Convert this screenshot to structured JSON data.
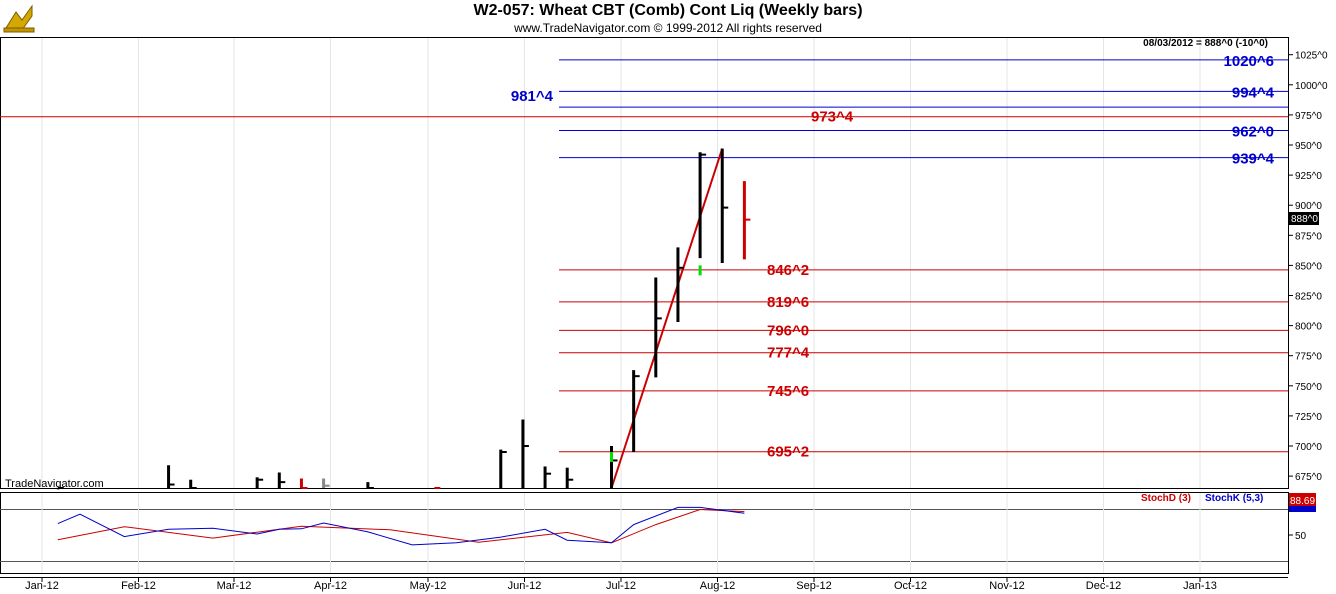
{
  "header": {
    "title": "W2-057:  Wheat CBT (Comb) Cont Liq  (Weekly bars)",
    "subtitle": "www.TradeNavigator.com © 1999-2012 All rights reserved",
    "quote": "08/03/2012 = 888^0 (-10^0)",
    "watermark": "TradeNavigator.com",
    "last_price_tag": "888^0"
  },
  "logo": {
    "icon": "tradenavigator-logo-icon"
  },
  "chart_data": [
    {
      "type": "ohlc",
      "x": [
        "Jan-12",
        "Feb-12",
        "Mar-12",
        "Apr-12",
        "May-12",
        "Jun-12",
        "Jul-12",
        "Aug-12",
        "Sep-12",
        "Oct-12",
        "Nov-12",
        "Dec-12",
        "Jan-13"
      ],
      "yticks": [
        "675^0",
        "700^0",
        "725^0",
        "750^0",
        "775^0",
        "800^0",
        "825^0",
        "850^0",
        "875^0",
        "900^0",
        "925^0",
        "950^0",
        "975^0",
        "1000^0",
        "1025^0"
      ],
      "ylim": [
        655,
        1032
      ],
      "bars": [
        {
          "date": "2012-01-06",
          "high": 665,
          "low": 655,
          "close": 660,
          "color": "#000000"
        },
        {
          "date": "2012-02-10",
          "high": 684,
          "low": 655,
          "close": 668,
          "color": "#000000"
        },
        {
          "date": "2012-02-17",
          "high": 672,
          "low": 655,
          "close": 664,
          "color": "#000000"
        },
        {
          "date": "2012-03-09",
          "high": 674,
          "low": 655,
          "close": 672,
          "color": "#000000"
        },
        {
          "date": "2012-03-16",
          "high": 678,
          "low": 655,
          "close": 670,
          "color": "#000000"
        },
        {
          "date": "2012-03-23",
          "high": 673,
          "low": 655,
          "close": 665,
          "color": "#cc0000"
        },
        {
          "date": "2012-03-30",
          "high": 673,
          "low": 655,
          "close": 667,
          "color": "#888888"
        },
        {
          "date": "2012-04-13",
          "high": 670,
          "low": 655,
          "close": 662,
          "color": "#000000"
        },
        {
          "date": "2012-05-04",
          "high": 665,
          "low": 655,
          "close": 660,
          "color": "#cc0000"
        },
        {
          "date": "2012-05-25",
          "high": 697,
          "low": 655,
          "close": 695,
          "color": "#000000"
        },
        {
          "date": "2012-06-01",
          "high": 722,
          "low": 655,
          "close": 700,
          "color": "#000000"
        },
        {
          "date": "2012-06-08",
          "high": 683,
          "low": 655,
          "close": 677,
          "color": "#000000"
        },
        {
          "date": "2012-06-15",
          "high": 682,
          "low": 655,
          "close": 672,
          "color": "#000000"
        },
        {
          "date": "2012-06-29",
          "high": 700,
          "low": 655,
          "close": 688,
          "color": "#000000"
        },
        {
          "date": "2012-07-06",
          "high": 763,
          "low": 695,
          "close": 758,
          "color": "#000000"
        },
        {
          "date": "2012-07-13",
          "high": 840,
          "low": 757,
          "close": 806,
          "color": "#000000"
        },
        {
          "date": "2012-07-20",
          "high": 865,
          "low": 803,
          "close": 848,
          "color": "#000000"
        },
        {
          "date": "2012-07-27",
          "high": 944,
          "low": 856,
          "close": 942,
          "color": "#000000"
        },
        {
          "date": "2012-08-03",
          "high": 947,
          "low": 852,
          "close": 898,
          "color": "#000000"
        },
        {
          "date": "2012-08-10",
          "high": 920,
          "low": 855,
          "close": 888,
          "color": "#cc0000"
        }
      ],
      "trendline": {
        "from": {
          "date": "2012-06-29",
          "price": 655
        },
        "to": {
          "date": "2012-08-03",
          "price": 947
        },
        "color": "#cc0000"
      },
      "levels": [
        {
          "label": "1020^6",
          "value": 1020.75,
          "color": "#0000cc",
          "side": "right"
        },
        {
          "label": "994^4",
          "value": 994.5,
          "color": "#0000cc",
          "side": "right"
        },
        {
          "label": "981^4",
          "value": 981.5,
          "color": "#0000cc",
          "side": "left"
        },
        {
          "label": "973^4",
          "value": 973.5,
          "color": "#cc0000",
          "side": "mid",
          "full": true
        },
        {
          "label": "962^0",
          "value": 962.0,
          "color": "#0000cc",
          "side": "right"
        },
        {
          "label": "939^4",
          "value": 939.5,
          "color": "#0000cc",
          "side": "right"
        },
        {
          "label": "846^2",
          "value": 846.25,
          "color": "#cc0000",
          "side": "mid"
        },
        {
          "label": "819^6",
          "value": 819.75,
          "color": "#cc0000",
          "side": "mid"
        },
        {
          "label": "796^0",
          "value": 796.0,
          "color": "#cc0000",
          "side": "mid"
        },
        {
          "label": "777^4",
          "value": 777.5,
          "color": "#cc0000",
          "side": "mid"
        },
        {
          "label": "745^6",
          "value": 745.75,
          "color": "#cc0000",
          "side": "mid"
        },
        {
          "label": "695^2",
          "value": 695.25,
          "color": "#cc0000",
          "side": "mid"
        }
      ]
    },
    {
      "type": "line",
      "legend": [
        {
          "name": "StochD (3)",
          "color": "#cc0000"
        },
        {
          "name": "StochK (5,3)",
          "color": "#0000cc"
        }
      ],
      "yticks": [
        "50"
      ],
      "last_value": "88.69",
      "ylim": [
        0,
        100
      ],
      "series": [
        {
          "name": "StochD (3)",
          "color": "#cc0000",
          "x": [
            "2012-01-06",
            "2012-01-27",
            "2012-02-24",
            "2012-03-23",
            "2012-04-20",
            "2012-05-18",
            "2012-06-15",
            "2012-06-29",
            "2012-07-13",
            "2012-07-27",
            "2012-08-10"
          ],
          "values": [
            41,
            66,
            44,
            67,
            60,
            36,
            55,
            35,
            70,
            99,
            95
          ]
        },
        {
          "name": "StochK (5,3)",
          "color": "#0000cc",
          "x": [
            "2012-01-06",
            "2012-01-13",
            "2012-01-27",
            "2012-02-10",
            "2012-02-24",
            "2012-03-09",
            "2012-03-16",
            "2012-03-23",
            "2012-03-30",
            "2012-04-13",
            "2012-04-27",
            "2012-05-11",
            "2012-05-25",
            "2012-06-08",
            "2012-06-15",
            "2012-06-29",
            "2012-07-06",
            "2012-07-20",
            "2012-07-27",
            "2012-08-10"
          ],
          "values": [
            72,
            90,
            47,
            61,
            63,
            52,
            61,
            62,
            73,
            56,
            31,
            35,
            46,
            61,
            40,
            35,
            70,
            103,
            103,
            92
          ]
        }
      ]
    }
  ]
}
